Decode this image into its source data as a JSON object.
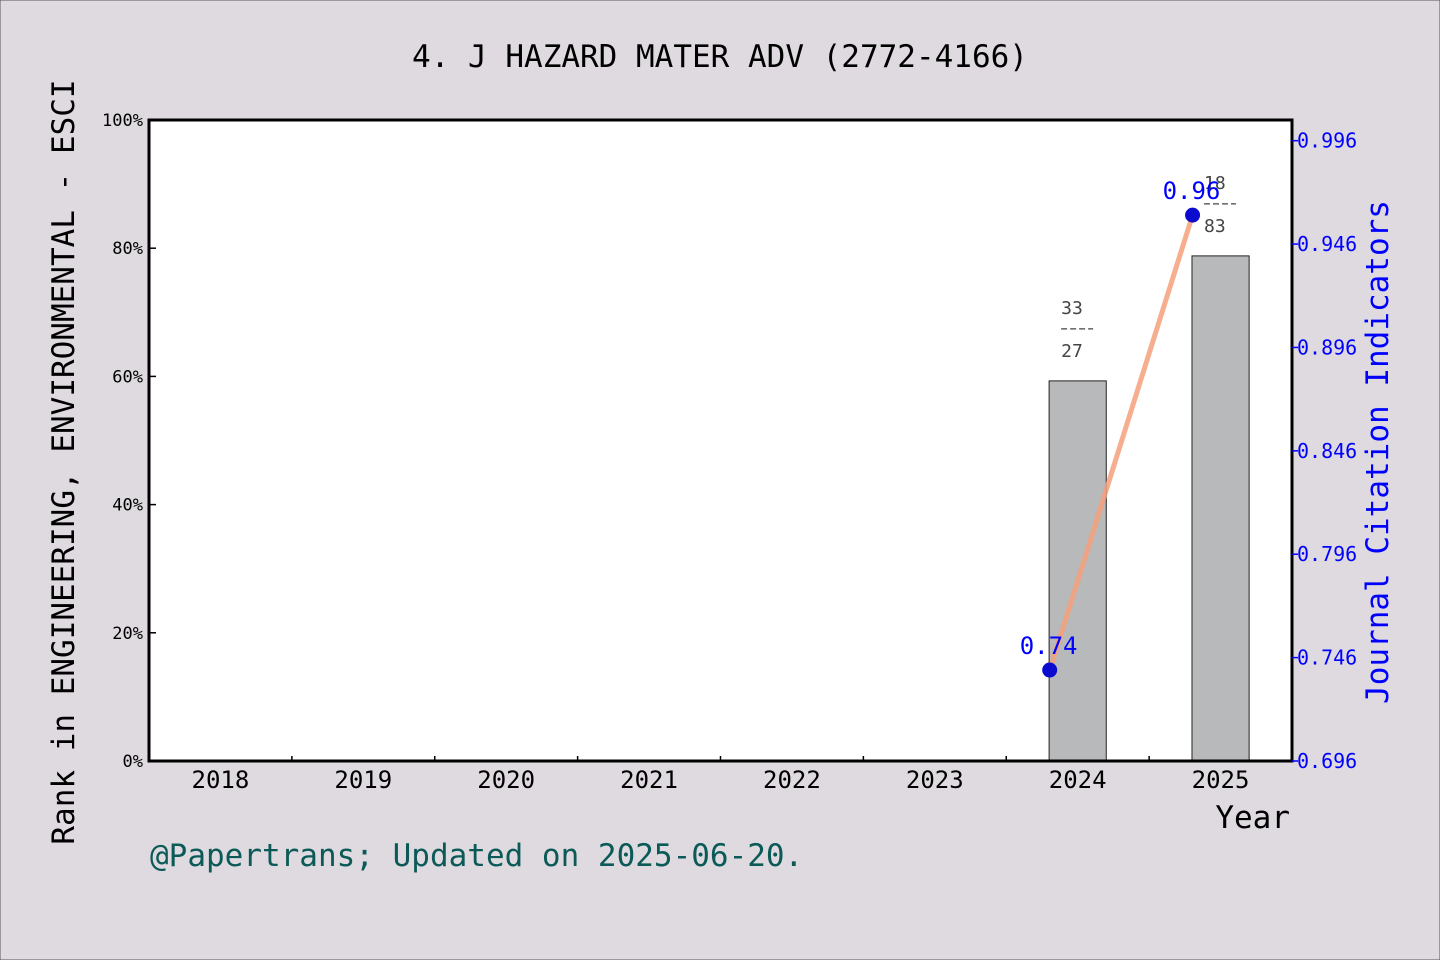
{
  "chart_data": {
    "type": "bar",
    "title": "4. J HAZARD MATER ADV (2772-4166)",
    "xlabel": "Year",
    "ylabel": "Rank in ENGINEERING, ENVIRONMENTAL - ESCI",
    "y2label": "Journal Citation Indicators",
    "footer": "@Papertrans; Updated on 2025-06-20.",
    "categories": [
      "2018",
      "2019",
      "2020",
      "2021",
      "2022",
      "2023",
      "2024",
      "2025"
    ],
    "ylim": [
      0,
      100
    ],
    "yticks": [
      "0%",
      "20%",
      "40%",
      "60%",
      "80%",
      "100%"
    ],
    "y2lim": [
      0.696,
      1.006
    ],
    "y2ticks": [
      "0.696",
      "0.746",
      "0.796",
      "0.846",
      "0.896",
      "0.946",
      "0.996"
    ],
    "grid": false,
    "series": [
      {
        "kind": "bar",
        "values": [
          null,
          null,
          null,
          null,
          null,
          null,
          59.3,
          78.8
        ],
        "labels": [
          null,
          null,
          null,
          null,
          null,
          null,
          {
            "top": "33",
            "bottom": "27"
          },
          {
            "top": "18",
            "bottom": "83"
          }
        ]
      },
      {
        "kind": "line",
        "axis": "right",
        "values": [
          null,
          null,
          null,
          null,
          null,
          null,
          0.74,
          0.96
        ],
        "labels": [
          null,
          null,
          null,
          null,
          null,
          null,
          "0.74",
          "0.96"
        ]
      }
    ],
    "colors": {
      "background": "#dedadf",
      "plot": "#ffffff",
      "bar": "#b8b9ba",
      "line": "#f5a07a",
      "marker": "#0b0bd0",
      "right_axis": "#0000ff",
      "footer": "#0b5a58",
      "text": "#000000",
      "bar_label": "#444444"
    }
  }
}
